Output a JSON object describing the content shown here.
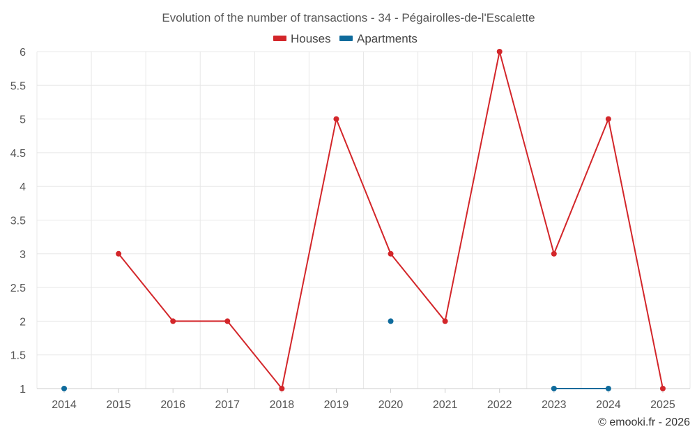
{
  "chart_data": {
    "type": "line",
    "title": "Evolution of the number of transactions - 34 - Pégairolles-de-l'Escalette",
    "x": [
      "2014",
      "2015",
      "2016",
      "2017",
      "2018",
      "2019",
      "2020",
      "2021",
      "2022",
      "2023",
      "2024",
      "2025"
    ],
    "series": [
      {
        "name": "Houses",
        "color": "#d3262a",
        "values": [
          null,
          3,
          2,
          2,
          1,
          5,
          3,
          2,
          6,
          3,
          5,
          1
        ]
      },
      {
        "name": "Apartments",
        "color": "#0f6b9c",
        "values": [
          1,
          null,
          null,
          null,
          null,
          null,
          2,
          null,
          null,
          1,
          1,
          null
        ]
      }
    ],
    "ylim": [
      1,
      6
    ],
    "yticks": [
      "1",
      "1.5",
      "2",
      "2.5",
      "3",
      "3.5",
      "4",
      "4.5",
      "5",
      "5.5",
      "6"
    ],
    "xlabel": "",
    "ylabel": "",
    "grid": true,
    "legend_position": "top-center",
    "credit": "© emooki.fr - 2026"
  }
}
